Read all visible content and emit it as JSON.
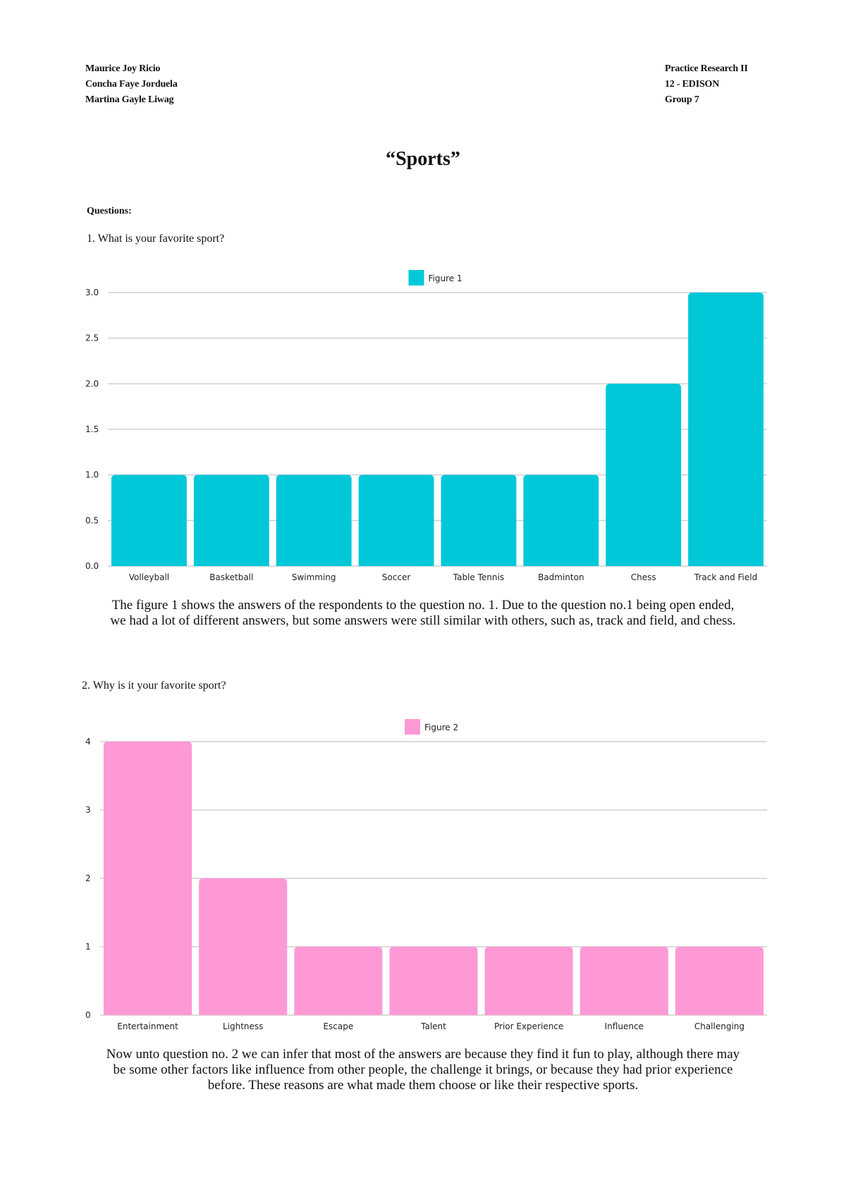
{
  "header": {
    "left": [
      "Maurice Joy Ricio",
      "Concha Faye Jorduela",
      "Martina Gayle Liwag"
    ],
    "right": [
      "Practice Research II",
      "12 - EDISON",
      "Group 7"
    ]
  },
  "title": "“Sports”",
  "questions_label": "Questions:",
  "q1": "1. What is your favorite sport?",
  "p1": "The figure 1 shows the answers of the respondents to the question no. 1. Due to the question no.1 being open ended, we had a lot of different answers, but some answers were still similar with others, such as, track and field, and chess.",
  "q2": "2. Why is it your favorite sport?",
  "p2": "Now unto question no. 2 we can infer that most of the answers are because they find it fun to play, although there may be some other factors like influence from other people, the challenge it brings, or because they had prior experience before. These reasons are what made them choose or like their respective sports.",
  "chart_data": [
    {
      "type": "bar",
      "legend": "Figure 1",
      "legend_position": "top",
      "color": "#00C8D9",
      "categories": [
        "Volleyball",
        "Basketball",
        "Swimming",
        "Soccer",
        "Table Tennis",
        "Badminton",
        "Chess",
        "Track and Field"
      ],
      "values": [
        1,
        1,
        1,
        1,
        1,
        1,
        2,
        3
      ],
      "yticks": [
        "0.0",
        "0.5",
        "1.0",
        "1.5",
        "2.0",
        "2.5",
        "3.0"
      ],
      "ylim": [
        0,
        3
      ],
      "grid": true
    },
    {
      "type": "bar",
      "legend": "Figure 2",
      "legend_position": "top",
      "color": "#FF99D6",
      "categories": [
        "Entertainment",
        "Lightness",
        "Escape",
        "Talent",
        "Prior Experience",
        "Influence",
        "Challenging"
      ],
      "values": [
        4,
        2,
        1,
        1,
        1,
        1,
        1
      ],
      "yticks": [
        "0",
        "1",
        "2",
        "3",
        "4"
      ],
      "ylim": [
        0,
        4
      ],
      "grid": true
    }
  ]
}
